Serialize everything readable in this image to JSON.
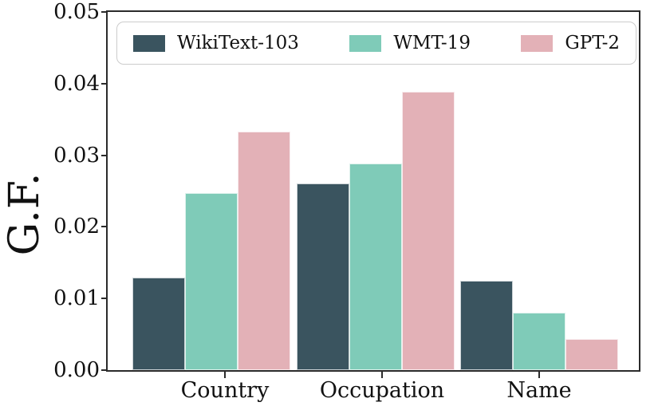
{
  "figure": {
    "ylabel": "G.F."
  },
  "chart_data": {
    "type": "bar",
    "title": "",
    "xlabel": "",
    "ylabel": "G.F.",
    "categories": [
      "Country",
      "Occupation",
      "Name"
    ],
    "series": [
      {
        "name": "WikiText-103",
        "color": "#3a545f",
        "values": [
          0.0129,
          0.0261,
          0.0125
        ]
      },
      {
        "name": "WMT-19",
        "color": "#7fcbb8",
        "values": [
          0.0247,
          0.0288,
          0.008
        ]
      },
      {
        "name": "GPT-2",
        "color": "#e3b1b7",
        "values": [
          0.0333,
          0.0389,
          0.0043
        ]
      }
    ],
    "ylim": [
      0,
      0.05
    ],
    "yticks": [
      "0.00",
      "0.01",
      "0.02",
      "0.03",
      "0.04",
      "0.05"
    ],
    "grid": false,
    "legend_position": "top, horizontal, full-width box",
    "axis_color": "#2b2b2b",
    "background_color": "#ffffff"
  }
}
